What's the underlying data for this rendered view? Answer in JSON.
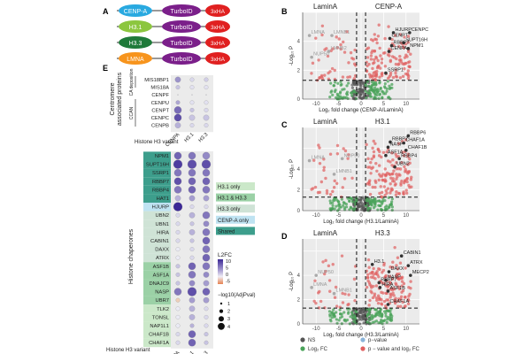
{
  "panel_letters": {
    "a": "A",
    "b": "B",
    "c": "C",
    "d": "D",
    "e": "E"
  },
  "constructs": {
    "tag1": "TurboID",
    "tag2": "3xHA",
    "colors": {
      "turbo": "#7b1f8a",
      "ha": "#e02020"
    },
    "rows": [
      {
        "label": "CENP-A",
        "color": "#29a9e0"
      },
      {
        "label": "H3.1",
        "color": "#8cc63f"
      },
      {
        "label": "H3.3",
        "color": "#1f7a3a"
      },
      {
        "label": "LMNA",
        "color": "#f7941d"
      }
    ]
  },
  "volcano_common": {
    "ylabel": "-Log₁₀ P",
    "xticks": [
      "-10",
      "-5",
      "0",
      "5",
      "10"
    ],
    "yticks": [
      "0",
      "2",
      "4"
    ]
  },
  "legend": {
    "items": [
      {
        "label": "NS",
        "color": "#555555"
      },
      {
        "label": "p−value",
        "color": "#8ab4d9"
      },
      {
        "label": "Log₂ FC",
        "color": "#4aa35a"
      },
      {
        "label": "p − value and log₂ FC",
        "color": "#e06060"
      }
    ]
  },
  "chart_data": [
    {
      "type": "scatter",
      "panel": "B",
      "left_label": "LaminA",
      "right_label": "CENP-A",
      "xlabel": "Log₂ fold change (CENP-A/LaminA)",
      "xlim": [
        -13,
        13
      ],
      "ylim": [
        0,
        6
      ],
      "labeled_genes": [
        {
          "name": "HJURP",
          "x": 7.2,
          "y": 4.6
        },
        {
          "name": "CENPC",
          "x": 10.8,
          "y": 4.6
        },
        {
          "name": "CENPT",
          "x": 6.4,
          "y": 4.2
        },
        {
          "name": "SUPT16H",
          "x": 9.5,
          "y": 3.9
        },
        {
          "name": "RBBP7",
          "x": 6.8,
          "y": 3.7
        },
        {
          "name": "NPM1",
          "x": 10.5,
          "y": 3.5
        },
        {
          "name": "CENPA",
          "x": 6.2,
          "y": 3.3
        },
        {
          "name": "SSRP1",
          "x": 5.5,
          "y": 1.8
        },
        {
          "name": "LMNA",
          "x": -11.5,
          "y": 4.4
        },
        {
          "name": "LMNB1",
          "x": -6.5,
          "y": 4.4
        },
        {
          "name": "NUP50",
          "x": -11,
          "y": 2.9
        },
        {
          "name": "LMNB2",
          "x": -7.2,
          "y": 3.3
        }
      ]
    },
    {
      "type": "scatter",
      "panel": "C",
      "left_label": "LaminA",
      "right_label": "H3.1",
      "xlabel": "Log₂ fold change (H3.1/LaminA)",
      "xlim": [
        -13,
        13
      ],
      "ylim": [
        0,
        8
      ],
      "labeled_genes": [
        {
          "name": "RBBP6",
          "x": 10.5,
          "y": 7.2
        },
        {
          "name": "RBBP7",
          "x": 6.5,
          "y": 6.6
        },
        {
          "name": "CHAF1A",
          "x": 9.5,
          "y": 6.5
        },
        {
          "name": "NASP",
          "x": 6.0,
          "y": 6.1
        },
        {
          "name": "CHAF1B",
          "x": 10.0,
          "y": 5.8
        },
        {
          "name": "ASF1A",
          "x": 5.5,
          "y": 5.3
        },
        {
          "name": "RBBP4",
          "x": 8.5,
          "y": 5.0
        },
        {
          "name": "UBN2",
          "x": 7.5,
          "y": 4.2
        },
        {
          "name": "NUP50",
          "x": -4.2,
          "y": 5.0
        },
        {
          "name": "LMNA",
          "x": -11.5,
          "y": 4.8
        },
        {
          "name": "LMNB1",
          "x": -6.0,
          "y": 3.5
        }
      ]
    },
    {
      "type": "scatter",
      "panel": "D",
      "left_label": "LaminA",
      "right_label": "H3.3",
      "xlabel": "Log₂ fold change (H3.3/LaminA)",
      "xlim": [
        -13,
        13
      ],
      "ylim": [
        0,
        7
      ],
      "labeled_genes": [
        {
          "name": "CABIN1",
          "x": 9.0,
          "y": 5.6
        },
        {
          "name": "ATRX",
          "x": 10.5,
          "y": 4.8
        },
        {
          "name": "H3.1",
          "x": 2.5,
          "y": 4.9
        },
        {
          "name": "DAXX",
          "x": 6.2,
          "y": 4.3
        },
        {
          "name": "MECP2",
          "x": 11.0,
          "y": 4.0
        },
        {
          "name": "NASP",
          "x": 5.5,
          "y": 3.6
        },
        {
          "name": "RBBP7",
          "x": 4.0,
          "y": 3.4
        },
        {
          "name": "HIRA",
          "x": 4.2,
          "y": 3.0
        },
        {
          "name": "ASF1B",
          "x": 6.0,
          "y": 2.7
        },
        {
          "name": "CHAF1A",
          "x": 6.0,
          "y": 1.6
        },
        {
          "name": "LMNA",
          "x": -11.0,
          "y": 3.0
        },
        {
          "name": "NUP50",
          "x": -10.0,
          "y": 4.0
        },
        {
          "name": "LMNB1",
          "x": -6.0,
          "y": 2.5
        }
      ]
    },
    {
      "type": "heatmap",
      "panel": "E",
      "columns": [
        "CENPA",
        "H3.1",
        "H3.3"
      ],
      "xlabel": "Histone H3 variant",
      "group_top": "Centromere associated proteins",
      "subgroup_ca": "CA deposition",
      "subgroup_ccan": "CCAN",
      "group_bottom": "Histone chaperones",
      "legend_title": "L2FC",
      "legend_ticks": [
        "10",
        "5",
        "0",
        "-5"
      ],
      "size_legend_title": "−log10(AdjPval)",
      "size_legend_values": [
        "1",
        "2",
        "3",
        "4"
      ],
      "top_rows": [
        {
          "gene": "MIS18BP1",
          "values": [
            4.5,
            1.0,
            1.5
          ],
          "sizes": [
            2,
            1,
            1
          ]
        },
        {
          "gene": "MIS18A",
          "values": [
            2.0,
            0.5,
            0.5
          ],
          "sizes": [
            1,
            1,
            1
          ]
        },
        {
          "gene": "CENPF",
          "values": [
            0,
            0,
            0
          ],
          "sizes": [
            0,
            0,
            0
          ]
        },
        {
          "gene": "CENPU",
          "values": [
            3.5,
            0.5,
            0.5
          ],
          "sizes": [
            1,
            1,
            1
          ]
        },
        {
          "gene": "CENPT",
          "values": [
            6.5,
            2.0,
            1.0
          ],
          "sizes": [
            3,
            1,
            1
          ]
        },
        {
          "gene": "CENPC",
          "values": [
            8.0,
            2.0,
            2.0
          ],
          "sizes": [
            3,
            2,
            2
          ]
        },
        {
          "gene": "CENPB",
          "values": [
            3.0,
            1.0,
            1.0
          ],
          "sizes": [
            2,
            1,
            1
          ]
        }
      ],
      "category_legend": [
        {
          "label": "H3.1 only",
          "color": "#cbe8c9"
        },
        {
          "label": "H3.1 & H3.3",
          "color": "#9bd1a6"
        },
        {
          "label": "H3.3 only",
          "color": "#cfe3d6"
        },
        {
          "label": "CENP-A only",
          "color": "#bfe3f2"
        },
        {
          "label": "Shared",
          "color": "#3d9e8c"
        }
      ],
      "bottom_rows": [
        {
          "gene": "NPM1",
          "cat": 4,
          "values": [
            7,
            6,
            5
          ],
          "sizes": [
            3,
            3,
            3
          ]
        },
        {
          "gene": "SUPT16H",
          "cat": 4,
          "values": [
            9,
            8,
            8
          ],
          "sizes": [
            4,
            4,
            4
          ]
        },
        {
          "gene": "SSRP1",
          "cat": 4,
          "values": [
            6,
            6,
            6
          ],
          "sizes": [
            3,
            3,
            3
          ]
        },
        {
          "gene": "RBBP7",
          "cat": 4,
          "values": [
            8,
            7,
            7
          ],
          "sizes": [
            3,
            3,
            3
          ]
        },
        {
          "gene": "RBBP4",
          "cat": 4,
          "values": [
            6,
            7,
            6
          ],
          "sizes": [
            3,
            3,
            3
          ]
        },
        {
          "gene": "HAT1",
          "cat": 4,
          "values": [
            3,
            4,
            4
          ],
          "sizes": [
            2,
            2,
            2
          ]
        },
        {
          "gene": "HJURP",
          "cat": 3,
          "values": [
            10,
            1,
            1
          ],
          "sizes": [
            4,
            1,
            1
          ]
        },
        {
          "gene": "UBN2",
          "cat": 2,
          "values": [
            1,
            3,
            6
          ],
          "sizes": [
            1,
            2,
            3
          ]
        },
        {
          "gene": "UBN1",
          "cat": 2,
          "values": [
            1,
            2,
            5
          ],
          "sizes": [
            1,
            1,
            2
          ]
        },
        {
          "gene": "HIRA",
          "cat": 2,
          "values": [
            1,
            3,
            6
          ],
          "sizes": [
            1,
            2,
            3
          ]
        },
        {
          "gene": "CABIN1",
          "cat": 2,
          "values": [
            1,
            2,
            7
          ],
          "sizes": [
            1,
            1,
            3
          ]
        },
        {
          "gene": "DAXX",
          "cat": 2,
          "values": [
            0,
            1,
            6
          ],
          "sizes": [
            1,
            1,
            3
          ]
        },
        {
          "gene": "ATRX",
          "cat": 2,
          "values": [
            0,
            1,
            7
          ],
          "sizes": [
            1,
            1,
            3
          ]
        },
        {
          "gene": "ASF1B",
          "cat": 1,
          "values": [
            2,
            7,
            6
          ],
          "sizes": [
            1,
            3,
            3
          ]
        },
        {
          "gene": "ASF1A",
          "cat": 1,
          "values": [
            2,
            6,
            5
          ],
          "sizes": [
            1,
            3,
            2
          ]
        },
        {
          "gene": "DNAJC9",
          "cat": 1,
          "values": [
            2,
            5,
            4
          ],
          "sizes": [
            1,
            2,
            2
          ]
        },
        {
          "gene": "NASP",
          "cat": 1,
          "values": [
            6,
            8,
            7
          ],
          "sizes": [
            3,
            4,
            3
          ]
        },
        {
          "gene": "UBR7",
          "cat": 1,
          "values": [
            -1,
            4,
            4
          ],
          "sizes": [
            1,
            2,
            2
          ]
        },
        {
          "gene": "TLK2",
          "cat": 0,
          "values": [
            0,
            3,
            1
          ],
          "sizes": [
            1,
            2,
            1
          ]
        },
        {
          "gene": "TONSL",
          "cat": 0,
          "values": [
            0,
            3,
            1
          ],
          "sizes": [
            1,
            2,
            1
          ]
        },
        {
          "gene": "NAP1L1",
          "cat": 0,
          "values": [
            0,
            3,
            1
          ],
          "sizes": [
            1,
            1,
            1
          ]
        },
        {
          "gene": "CHAF1B",
          "cat": 0,
          "values": [
            1,
            7,
            2
          ],
          "sizes": [
            1,
            3,
            1
          ]
        },
        {
          "gene": "CHAF1A",
          "cat": 0,
          "values": [
            1,
            7,
            2
          ],
          "sizes": [
            1,
            3,
            1
          ]
        }
      ]
    }
  ]
}
